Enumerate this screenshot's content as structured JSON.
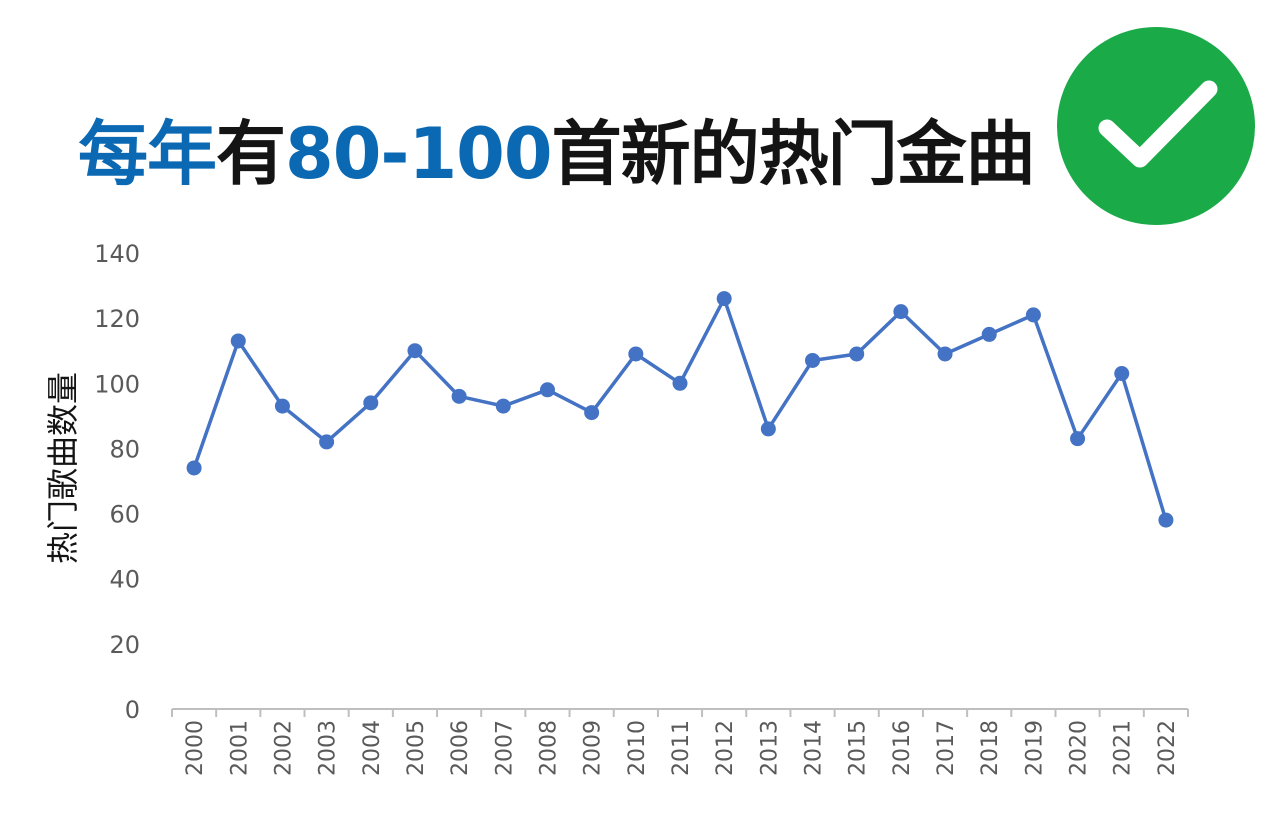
{
  "title": {
    "part1": "每年",
    "part2": "有",
    "part3": "80-100",
    "part4": "首新的热门金曲"
  },
  "badge": {
    "icon": "checkmark-icon",
    "color": "#1aaa48"
  },
  "colors": {
    "accent": "#0b69b3",
    "line": "#4472c4"
  },
  "chart_data": {
    "type": "line",
    "ylabel": "热门歌曲数量",
    "xlabel": "",
    "ylim": [
      0,
      140
    ],
    "yticks": [
      0,
      20,
      40,
      60,
      80,
      100,
      120,
      140
    ],
    "grid": false,
    "x": [
      "2000",
      "2001",
      "2002",
      "2003",
      "2004",
      "2005",
      "2006",
      "2007",
      "2008",
      "2009",
      "2010",
      "2011",
      "2012",
      "2013",
      "2014",
      "2015",
      "2016",
      "2017",
      "2018",
      "2019",
      "2020",
      "2021",
      "2022"
    ],
    "series": [
      {
        "values": [
          74,
          113,
          93,
          82,
          94,
          110,
          96,
          93,
          98,
          91,
          109,
          100,
          126,
          86,
          107,
          109,
          122,
          109,
          115,
          121,
          83,
          103,
          58
        ]
      }
    ]
  }
}
